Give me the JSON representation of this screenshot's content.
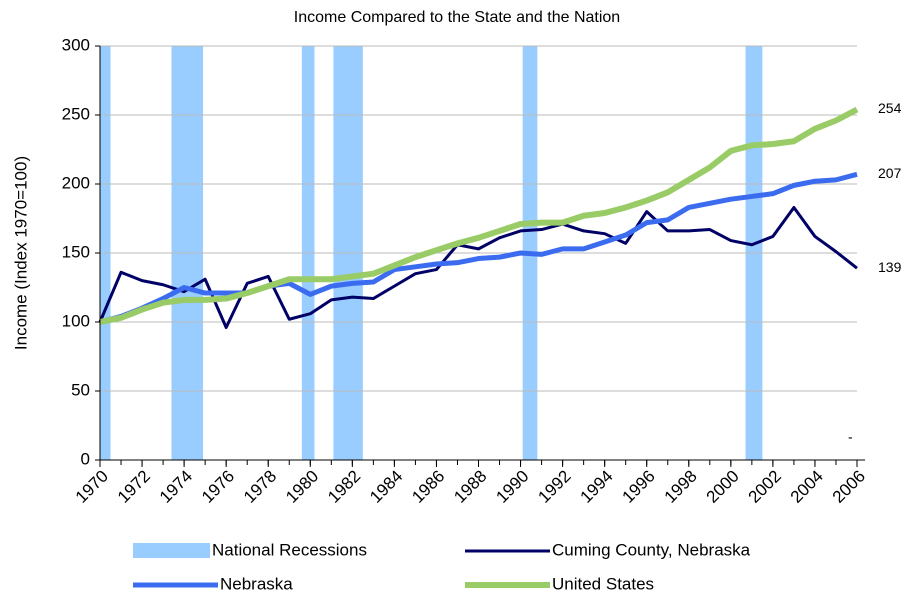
{
  "chart_data": {
    "type": "line",
    "title": "Income Compared to the State and the Nation",
    "y_label": "Income (Index 1970=100)",
    "xlim": [
      1970,
      2006
    ],
    "xticks": [
      1970,
      1972,
      1974,
      1976,
      1978,
      1980,
      1982,
      1984,
      1986,
      1988,
      1990,
      1992,
      1994,
      1996,
      1998,
      2000,
      2002,
      2004,
      2006
    ],
    "ylim": [
      0,
      300
    ],
    "yticks": [
      0,
      50,
      100,
      150,
      200,
      250,
      300
    ],
    "grid": true,
    "x": [
      1970,
      1971,
      1972,
      1973,
      1974,
      1975,
      1976,
      1977,
      1978,
      1979,
      1980,
      1981,
      1982,
      1983,
      1984,
      1985,
      1986,
      1987,
      1988,
      1989,
      1990,
      1991,
      1992,
      1993,
      1994,
      1995,
      1996,
      1997,
      1998,
      1999,
      2000,
      2001,
      2002,
      2003,
      2004,
      2005,
      2006
    ],
    "recessions": {
      "name": "National Recessions",
      "color": "#99ccff",
      "ranges": [
        [
          1970,
          1970.5
        ],
        [
          1973.4,
          1974.9
        ],
        [
          1979.6,
          1980.2
        ],
        [
          1981.1,
          1982.5
        ],
        [
          1990.1,
          1990.8
        ],
        [
          2000.7,
          2001.5
        ]
      ]
    },
    "series": [
      {
        "name": "Cuming County, Nebraska",
        "color": "#000066",
        "width": 3,
        "values": [
          100,
          136,
          130,
          127,
          122,
          131,
          96,
          128,
          133,
          102,
          106,
          116,
          118,
          117,
          126,
          135,
          138,
          156,
          153,
          161,
          166,
          167,
          171,
          166,
          164,
          157,
          180,
          166,
          166,
          167,
          159,
          156,
          162,
          183,
          162,
          151,
          139
        ]
      },
      {
        "name": "Nebraska",
        "color": "#3b6cf0",
        "width": 5,
        "values": [
          100,
          104,
          110,
          117,
          125,
          121,
          121,
          121,
          126,
          128,
          120,
          126,
          128,
          129,
          138,
          140,
          142,
          143,
          146,
          147,
          150,
          149,
          153,
          153,
          158,
          163,
          172,
          174,
          183,
          186,
          189,
          191,
          193,
          199,
          202,
          203,
          207
        ]
      },
      {
        "name": "United States",
        "color": "#99cc66",
        "width": 6,
        "values": [
          100,
          103,
          109,
          114,
          116,
          116,
          117,
          121,
          126,
          131,
          131,
          131,
          133,
          135,
          141,
          147,
          152,
          157,
          161,
          166,
          171,
          172,
          172,
          177,
          179,
          183,
          188,
          194,
          203,
          212,
          224,
          228,
          229,
          231,
          240,
          246,
          254
        ]
      }
    ],
    "annotation": "-"
  }
}
